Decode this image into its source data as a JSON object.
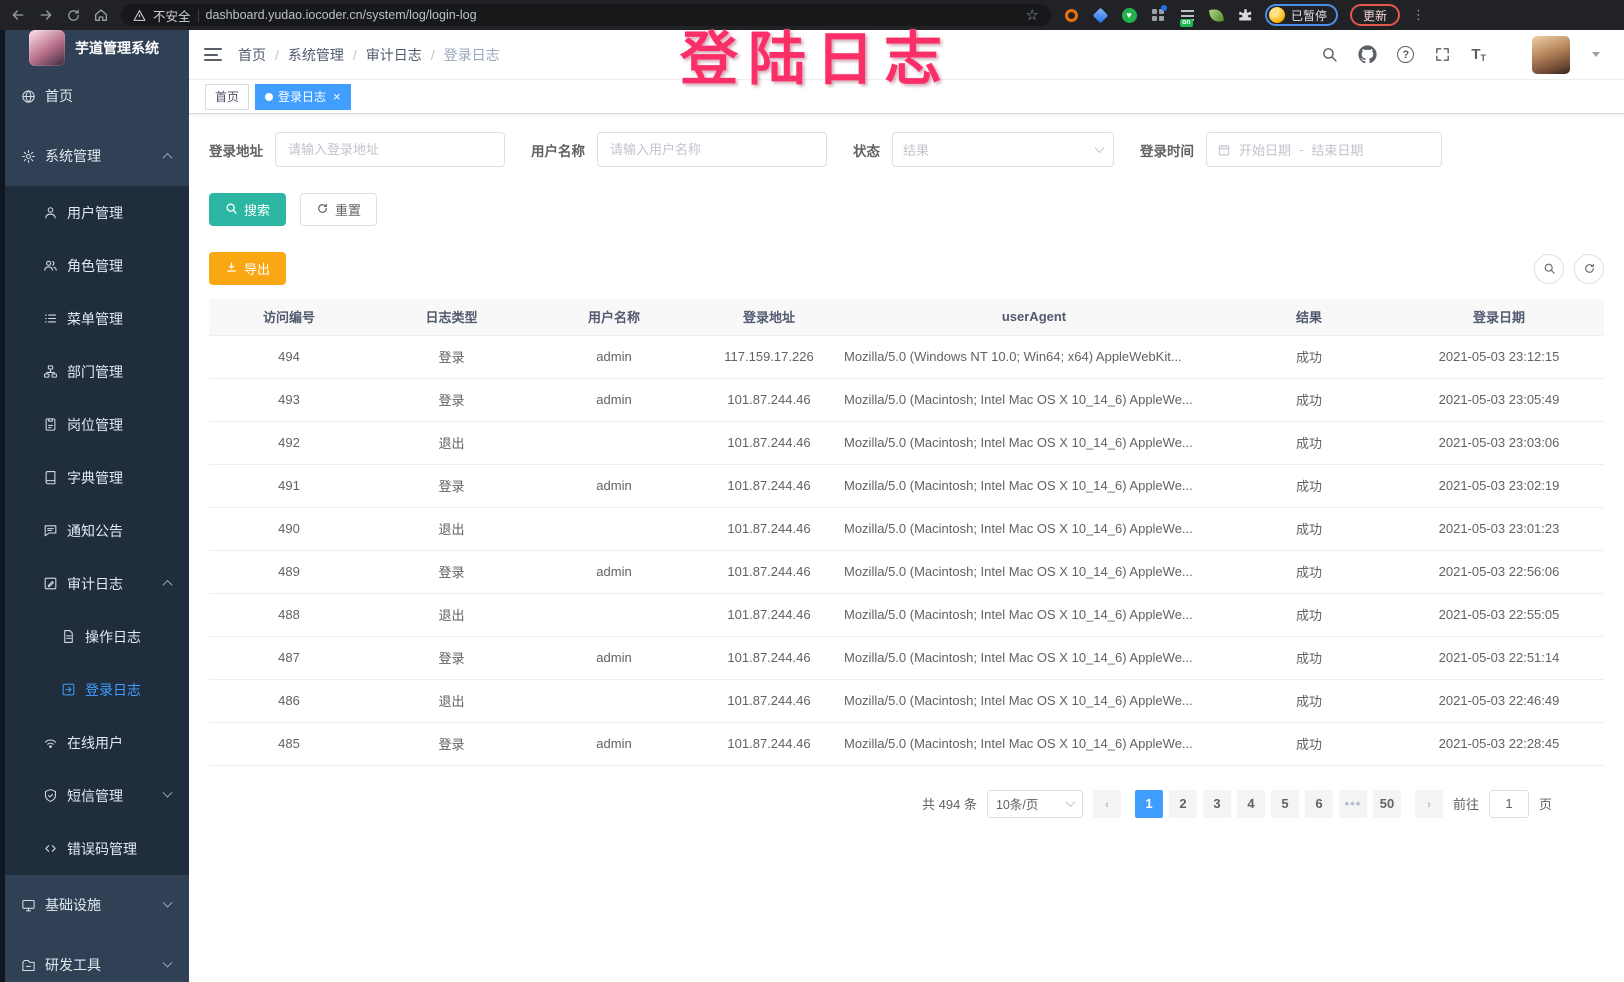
{
  "browser": {
    "security_label": "不安全",
    "url": "dashboard.yudao.iocoder.cn/system/log/login-log",
    "extension_on_badge": "on",
    "profile_paused_label": "已暂停",
    "update_label": "更新",
    "menu_dots": "⋮"
  },
  "watermark": "登陆日志",
  "sidebar": {
    "app_title": "芋道管理系统",
    "items": [
      {
        "name": "home",
        "icon": "globe",
        "label": "首页",
        "level": 1
      },
      {
        "name": "system-management",
        "icon": "gear",
        "label": "系统管理",
        "level": 1,
        "arrow": "up"
      },
      {
        "name": "user-management",
        "icon": "user",
        "label": "用户管理",
        "level": 2
      },
      {
        "name": "role-management",
        "icon": "users",
        "label": "角色管理",
        "level": 2
      },
      {
        "name": "menu-management",
        "icon": "tree-list",
        "label": "菜单管理",
        "level": 2
      },
      {
        "name": "department-management",
        "icon": "org-tree",
        "label": "部门管理",
        "level": 2
      },
      {
        "name": "post-management",
        "icon": "id-badge",
        "label": "岗位管理",
        "level": 2
      },
      {
        "name": "dict-management",
        "icon": "book",
        "label": "字典管理",
        "level": 2
      },
      {
        "name": "notice-announcement",
        "icon": "message-bubble",
        "label": "通知公告",
        "level": 2
      },
      {
        "name": "audit-log",
        "icon": "edit-square",
        "label": "审计日志",
        "level": 2,
        "arrow": "up"
      },
      {
        "name": "operation-log",
        "icon": "document",
        "label": "操作日志",
        "level": 3
      },
      {
        "name": "login-log",
        "icon": "login-arrow",
        "label": "登录日志",
        "level": 3,
        "active": true
      },
      {
        "name": "online-users",
        "icon": "wifi",
        "label": "在线用户",
        "level": 2
      },
      {
        "name": "sms-management",
        "icon": "shield-check",
        "label": "短信管理",
        "level": 2,
        "arrow": "down"
      },
      {
        "name": "error-code-management",
        "icon": "code",
        "label": "错误码管理",
        "level": 2
      },
      {
        "name": "infrastructure",
        "icon": "monitor",
        "label": "基础设施",
        "level": 1,
        "arrow": "down"
      },
      {
        "name": "dev-tools",
        "icon": "folder-tools",
        "label": "研发工具",
        "level": 1,
        "arrow": "down"
      }
    ]
  },
  "breadcrumb": [
    "首页",
    "系统管理",
    "审计日志",
    "登录日志"
  ],
  "tags": [
    {
      "label": "首页",
      "active": false,
      "closable": false
    },
    {
      "label": "登录日志",
      "active": true,
      "closable": true
    }
  ],
  "filters": {
    "login_address_label": "登录地址",
    "login_address_placeholder": "请输入登录地址",
    "username_label": "用户名称",
    "username_placeholder": "请输入用户名称",
    "status_label": "状态",
    "status_placeholder": "结果",
    "login_time_label": "登录时间",
    "date_start_placeholder": "开始日期",
    "date_separator": "-",
    "date_end_placeholder": "结束日期",
    "search_label": "搜索",
    "reset_label": "重置"
  },
  "toolbar": {
    "export_label": "导出"
  },
  "table": {
    "headers": [
      "访问编号",
      "日志类型",
      "用户名称",
      "登录地址",
      "userAgent",
      "结果",
      "登录日期"
    ],
    "rows": [
      [
        "494",
        "登录",
        "admin",
        "117.159.17.226",
        "Mozilla/5.0 (Windows NT 10.0; Win64; x64) AppleWebKit...",
        "成功",
        "2021-05-03 23:12:15"
      ],
      [
        "493",
        "登录",
        "admin",
        "101.87.244.46",
        "Mozilla/5.0 (Macintosh; Intel Mac OS X 10_14_6) AppleWe...",
        "成功",
        "2021-05-03 23:05:49"
      ],
      [
        "492",
        "退出",
        "",
        "101.87.244.46",
        "Mozilla/5.0 (Macintosh; Intel Mac OS X 10_14_6) AppleWe...",
        "成功",
        "2021-05-03 23:03:06"
      ],
      [
        "491",
        "登录",
        "admin",
        "101.87.244.46",
        "Mozilla/5.0 (Macintosh; Intel Mac OS X 10_14_6) AppleWe...",
        "成功",
        "2021-05-03 23:02:19"
      ],
      [
        "490",
        "退出",
        "",
        "101.87.244.46",
        "Mozilla/5.0 (Macintosh; Intel Mac OS X 10_14_6) AppleWe...",
        "成功",
        "2021-05-03 23:01:23"
      ],
      [
        "489",
        "登录",
        "admin",
        "101.87.244.46",
        "Mozilla/5.0 (Macintosh; Intel Mac OS X 10_14_6) AppleWe...",
        "成功",
        "2021-05-03 22:56:06"
      ],
      [
        "488",
        "退出",
        "",
        "101.87.244.46",
        "Mozilla/5.0 (Macintosh; Intel Mac OS X 10_14_6) AppleWe...",
        "成功",
        "2021-05-03 22:55:05"
      ],
      [
        "487",
        "登录",
        "admin",
        "101.87.244.46",
        "Mozilla/5.0 (Macintosh; Intel Mac OS X 10_14_6) AppleWe...",
        "成功",
        "2021-05-03 22:51:14"
      ],
      [
        "486",
        "退出",
        "",
        "101.87.244.46",
        "Mozilla/5.0 (Macintosh; Intel Mac OS X 10_14_6) AppleWe...",
        "成功",
        "2021-05-03 22:46:49"
      ],
      [
        "485",
        "登录",
        "admin",
        "101.87.244.46",
        "Mozilla/5.0 (Macintosh; Intel Mac OS X 10_14_6) AppleWe...",
        "成功",
        "2021-05-03 22:28:45"
      ]
    ]
  },
  "pagination": {
    "total_label": "共 494 条",
    "page_size": "10条/页",
    "prev": "‹",
    "next": "›",
    "pages": [
      "1",
      "2",
      "3",
      "4",
      "5",
      "6",
      "•••",
      "50"
    ],
    "active_page": "1",
    "goto_label": "前往",
    "goto_value": "1",
    "goto_suffix": "页"
  },
  "colors": {
    "accent": "#409eff",
    "search_button": "#2bb7a3",
    "export_button": "#f9a713",
    "sidebar_bg": "#304156",
    "submenu_bg": "#1f2d3d",
    "watermark": "#fb2f68",
    "update_ring": "#e4574d",
    "paused_ring": "#4d8fe8"
  }
}
